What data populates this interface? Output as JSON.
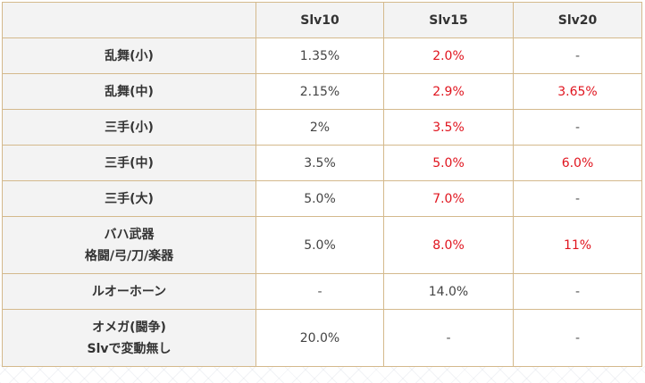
{
  "table": {
    "header": {
      "corner": "",
      "columns": [
        "Slv10",
        "Slv15",
        "Slv20"
      ]
    },
    "rows": [
      {
        "label_lines": [
          "乱舞(小)"
        ],
        "cells": [
          "1.35%",
          "2.0%",
          "-"
        ]
      },
      {
        "label_lines": [
          "乱舞(中)"
        ],
        "cells": [
          "2.15%",
          "2.9%",
          "3.65%"
        ]
      },
      {
        "label_lines": [
          "三手(小)"
        ],
        "cells": [
          "2%",
          "3.5%",
          "-"
        ]
      },
      {
        "label_lines": [
          "三手(中)"
        ],
        "cells": [
          "3.5%",
          "5.0%",
          "6.0%"
        ]
      },
      {
        "label_lines": [
          "三手(大)"
        ],
        "cells": [
          "5.0%",
          "7.0%",
          "-"
        ]
      },
      {
        "label_lines": [
          "バハ武器",
          "格闘/弓/刀/楽器"
        ],
        "cells": [
          "5.0%",
          "8.0%",
          "11%"
        ]
      },
      {
        "label_lines": [
          "ルオーホーン"
        ],
        "cells": [
          "-",
          "14.0%",
          "-"
        ]
      },
      {
        "label_lines": [
          "オメガ(闘争)",
          "Slvで変動無し"
        ],
        "cells": [
          "20.0%",
          "-",
          "-"
        ]
      }
    ]
  },
  "colors": {
    "border": "#d4b98c",
    "header_bg": "#f3f3f3",
    "highlight_red": "#e0141e",
    "text": "#333333"
  }
}
